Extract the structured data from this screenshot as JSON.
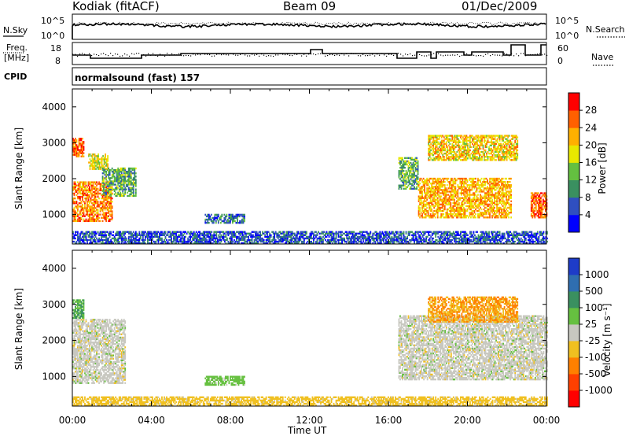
{
  "header": {
    "station": "Kodiak (fitACF)",
    "beam": "Beam 09",
    "date": "01/Dec/2009"
  },
  "noise_panel": {
    "left_label": "N.Sky",
    "left_ticks": [
      "10^5",
      "10^0"
    ],
    "right_label": "N.Search",
    "right_ticks": [
      "10^5",
      "10^0"
    ]
  },
  "freq_panel": {
    "left_label_line1": "Freq.",
    "left_label_line2": "[MHz]",
    "left_ticks": [
      "18",
      "8"
    ],
    "right_label": "Nave",
    "right_ticks": [
      "60",
      "0"
    ]
  },
  "cpid": {
    "label": "CPID",
    "program": "normalsound (fast) 157"
  },
  "x_axis": {
    "label": "Time UT",
    "ticks": [
      "00:00",
      "04:00",
      "08:00",
      "12:00",
      "16:00",
      "20:00",
      "00:00"
    ]
  },
  "power_panel": {
    "ylabel": "Slant Range [km]",
    "yticks": [
      "4000",
      "3000",
      "2000",
      "1000"
    ],
    "colorbar_label": "Power [dB]",
    "colorbar_ticks": [
      "28",
      "24",
      "20",
      "16",
      "12",
      "8",
      "4"
    ],
    "colors": [
      "#0000ff",
      "#2f4fc0",
      "#3a9060",
      "#64c040",
      "#e8e800",
      "#ffb000",
      "#ff6000",
      "#ff0000"
    ]
  },
  "velocity_panel": {
    "ylabel": "Slant Range [km]",
    "yticks": [
      "4000",
      "3000",
      "2000",
      "1000"
    ],
    "colorbar_label": "Velocity [m s⁻¹]",
    "colorbar_ticks": [
      "1000",
      "500",
      "100",
      "25",
      "-25",
      "-100",
      "-500",
      "-1000"
    ],
    "colors": [
      "#1e3cc8",
      "#2f6eb0",
      "#3a9060",
      "#66c040",
      "#c8c8c0",
      "#f0c020",
      "#ff8000",
      "#ff4000",
      "#ff0000"
    ]
  },
  "chart_data": [
    {
      "type": "heatmap",
      "title": "Power [dB]",
      "xlabel": "Time UT",
      "ylabel": "Slant Range [km]",
      "xlim_hours": [
        0,
        24
      ],
      "ylim_km": [
        180,
        4500
      ],
      "colorbar_range": [
        0,
        32
      ],
      "regions": [
        {
          "t0": 0.0,
          "t1": 0.6,
          "r0": 2600,
          "r1": 3100,
          "level": 26
        },
        {
          "t0": 0.8,
          "t1": 1.8,
          "r0": 2250,
          "r1": 2700,
          "level": 18
        },
        {
          "t0": 0.0,
          "t1": 2.0,
          "r0": 800,
          "r1": 1900,
          "level": 24
        },
        {
          "t0": 1.5,
          "t1": 3.2,
          "r0": 1500,
          "r1": 2300,
          "level": 12
        },
        {
          "t0": 0.0,
          "t1": 24.0,
          "r0": 180,
          "r1": 500,
          "level": 6
        },
        {
          "t0": 6.7,
          "t1": 8.7,
          "r0": 750,
          "r1": 1000,
          "level": 8
        },
        {
          "t0": 16.5,
          "t1": 17.5,
          "r0": 1700,
          "r1": 2600,
          "level": 12
        },
        {
          "t0": 17.5,
          "t1": 22.2,
          "r0": 900,
          "r1": 2000,
          "level": 22
        },
        {
          "t0": 18.0,
          "t1": 22.5,
          "r0": 2500,
          "r1": 3200,
          "level": 20
        },
        {
          "t0": 23.2,
          "t1": 24.0,
          "r0": 900,
          "r1": 1600,
          "level": 26
        }
      ]
    },
    {
      "type": "heatmap",
      "title": "Velocity",
      "xlabel": "Time UT",
      "ylabel": "Slant Range [km]",
      "xlim_hours": [
        0,
        24
      ],
      "ylim_km": [
        180,
        4500
      ],
      "colorbar_range": [
        -1000,
        1000
      ],
      "regions": [
        {
          "t0": 0.0,
          "t1": 0.6,
          "r0": 2600,
          "r1": 3100,
          "value": 100
        },
        {
          "t0": 0.0,
          "t1": 2.7,
          "r0": 800,
          "r1": 2600,
          "value": 0
        },
        {
          "t0": 0.0,
          "t1": 24.0,
          "r0": 180,
          "r1": 450,
          "value": -50
        },
        {
          "t0": 6.7,
          "t1": 8.7,
          "r0": 750,
          "r1": 1000,
          "value": 50
        },
        {
          "t0": 16.5,
          "t1": 24.0,
          "r0": 900,
          "r1": 2700,
          "value": 0
        },
        {
          "t0": 18.0,
          "t1": 22.5,
          "r0": 2500,
          "r1": 3200,
          "value": -100
        }
      ]
    }
  ]
}
